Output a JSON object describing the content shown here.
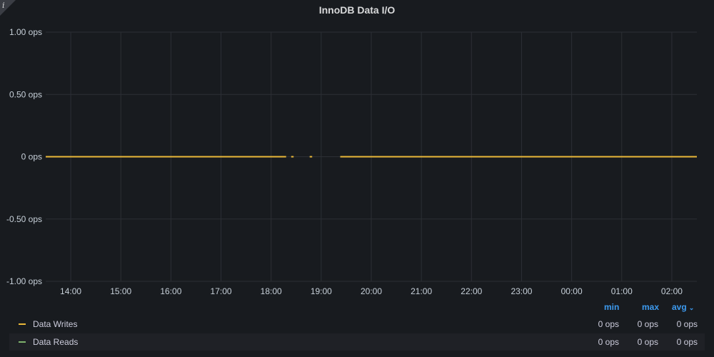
{
  "panel": {
    "title": "InnoDB Data I/O",
    "info_icon": "info-icon",
    "info_glyph": "i"
  },
  "chart_data": {
    "type": "line",
    "title": "InnoDB Data I/O",
    "ylabel": "",
    "xlabel": "",
    "ylim": [
      -1,
      1
    ],
    "y_ticks": [
      "1.00 ops",
      "0.50 ops",
      "0 ops",
      "-0.50 ops",
      "-1.00 ops"
    ],
    "y_tick_values": [
      1,
      0.5,
      0,
      -0.5,
      -1
    ],
    "x_ticks": [
      "14:00",
      "15:00",
      "16:00",
      "17:00",
      "18:00",
      "19:00",
      "20:00",
      "21:00",
      "22:00",
      "23:00",
      "00:00",
      "01:00",
      "02:00"
    ],
    "x_range_hours": [
      13.5,
      26.5
    ],
    "grid": true,
    "series": [
      {
        "name": "Data Writes",
        "color": "#eab839",
        "segments": [
          [
            13.5,
            18.3
          ],
          [
            18.4,
            18.45
          ],
          [
            18.77,
            18.82
          ],
          [
            19.38,
            26.5
          ]
        ],
        "value": 0
      },
      {
        "name": "Data Reads",
        "color": "#7eb26d",
        "segments": [],
        "value": 0
      }
    ]
  },
  "legend": {
    "headers": {
      "min": "min",
      "max": "max",
      "avg": "avg"
    },
    "rows": [
      {
        "name": "Data Writes",
        "color": "#eab839",
        "min": "0 ops",
        "max": "0 ops",
        "avg": "0 ops"
      },
      {
        "name": "Data Reads",
        "color": "#7eb26d",
        "min": "0 ops",
        "max": "0 ops",
        "avg": "0 ops"
      }
    ]
  }
}
